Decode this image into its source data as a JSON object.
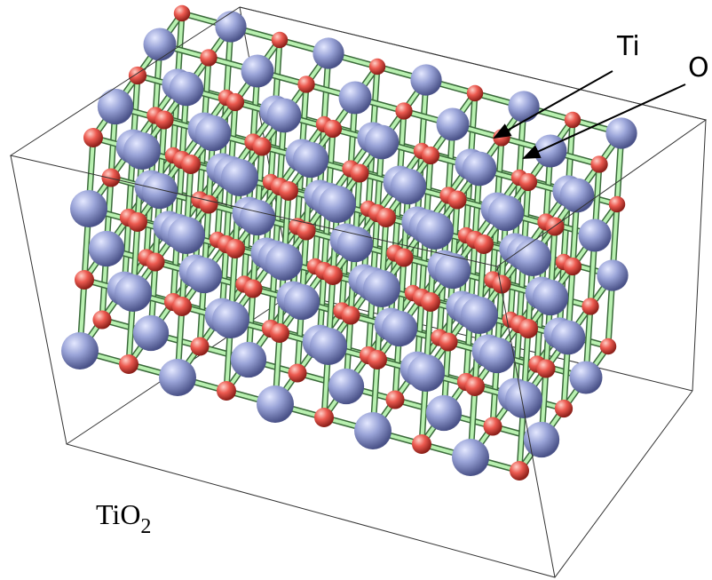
{
  "labels": {
    "ti": "Ti",
    "o": "O"
  },
  "formula": {
    "base": "TiO",
    "subscript": "2"
  }
}
